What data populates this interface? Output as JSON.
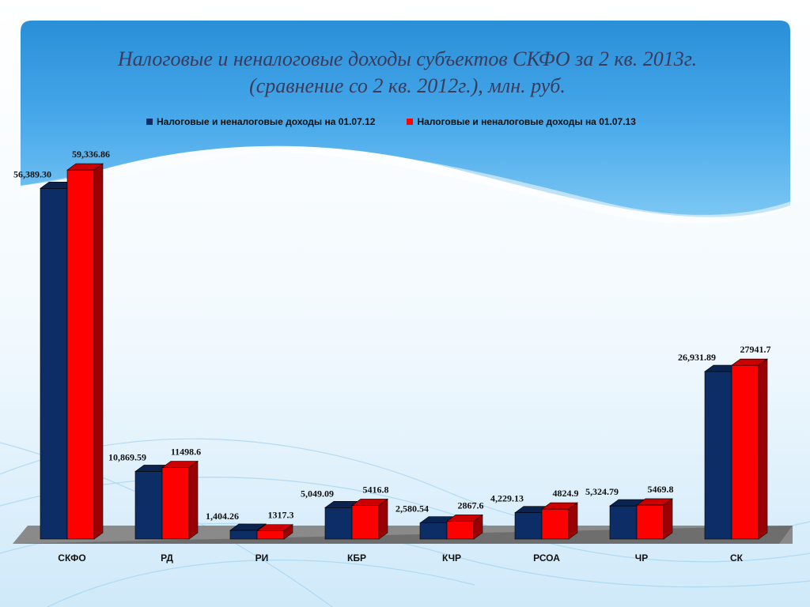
{
  "chart_data": {
    "type": "bar",
    "title_lines": [
      "Налоговые и неналоговые доходы субъектов СКФО за 2 кв. 2013г.",
      "(сравнение со 2 кв. 2012г.), млн. руб."
    ],
    "categories": [
      "СКФО",
      "РД",
      "РИ",
      "КБР",
      "КЧР",
      "РСОА",
      "ЧР",
      "СК"
    ],
    "series": [
      {
        "name": "Налоговые и неналоговые доходы на 01.07.12",
        "color": "#0d2d66",
        "values": [
          56389.3,
          10869.59,
          1404.26,
          5049.09,
          2580.54,
          4229.13,
          5324.79,
          26931.89
        ],
        "labels": [
          "56,389.30",
          "10,869.59",
          "1,404.26",
          "5,049.09",
          "2,580.54",
          "4,229.13",
          "5,324.79",
          "26,931.89"
        ]
      },
      {
        "name": "Налоговые и неналоговые доходы на 01.07.13",
        "color": "#ff0000",
        "values": [
          59336.86,
          11498.6,
          1317.3,
          5416.8,
          2867.6,
          4824.9,
          5469.8,
          27941.7
        ],
        "labels": [
          "59,336.86",
          "11498.6",
          "1317.3",
          "5416.8",
          "2867.6",
          "4824.9",
          "5469.8",
          "27941.7"
        ]
      }
    ],
    "ylim": [
      0,
      60000
    ],
    "legend_position": "top",
    "grid": false,
    "three_d": true
  }
}
